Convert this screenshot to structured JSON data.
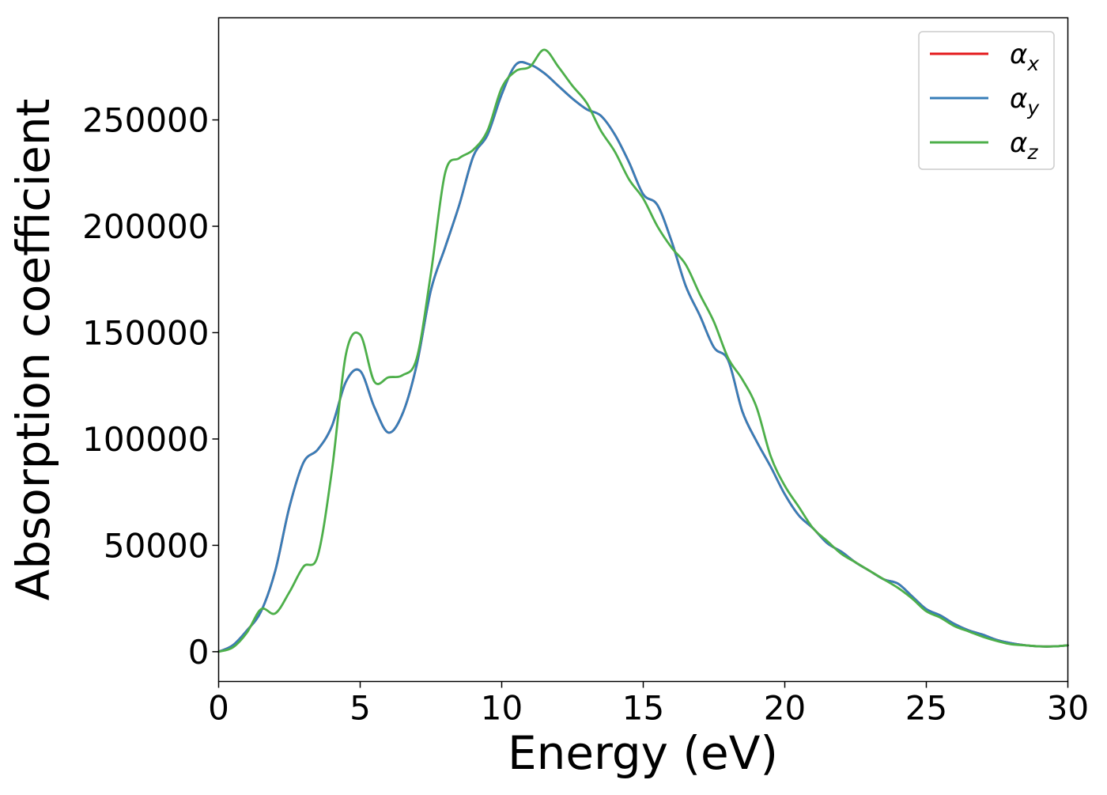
{
  "chart_data": {
    "type": "line",
    "xlabel": "Energy (eV)",
    "ylabel": "Absorption coefficient",
    "xlim": [
      0,
      30
    ],
    "ylim": [
      -14000,
      298000
    ],
    "xticks": [
      0,
      5,
      10,
      15,
      20,
      25,
      30
    ],
    "xtick_labels": [
      "0",
      "5",
      "10",
      "15",
      "20",
      "25",
      "30"
    ],
    "yticks": [
      0,
      50000,
      100000,
      150000,
      200000,
      250000
    ],
    "ytick_labels": [
      "0",
      "50000",
      "100000",
      "150000",
      "200000",
      "250000"
    ],
    "grid": false,
    "legend": {
      "position": "top-right"
    },
    "x": [
      0,
      0.5,
      1,
      1.5,
      2,
      2.5,
      3,
      3.5,
      4,
      4.5,
      5,
      5.5,
      6,
      6.5,
      7,
      7.5,
      8,
      8.5,
      9,
      9.5,
      10,
      10.5,
      11,
      11.5,
      12,
      12.5,
      13,
      13.5,
      14,
      14.5,
      15,
      15.5,
      16,
      16.5,
      17,
      17.5,
      18,
      18.5,
      19,
      19.5,
      20,
      20.5,
      21,
      21.5,
      22,
      22.5,
      23,
      23.5,
      24,
      24.5,
      25,
      25.5,
      26,
      26.5,
      27,
      27.5,
      28,
      28.5,
      29,
      29.5,
      30
    ],
    "series": [
      {
        "name": "α",
        "sub": "x",
        "color": "#e41a1c",
        "values": [
          0,
          3000,
          10000,
          19000,
          38000,
          68000,
          89000,
          95000,
          106000,
          127000,
          132000,
          115000,
          103000,
          112000,
          135000,
          170000,
          190000,
          210000,
          233000,
          243000,
          262000,
          276000,
          276000,
          272000,
          266000,
          260000,
          255000,
          252000,
          243000,
          230000,
          215000,
          210000,
          193000,
          172000,
          158000,
          143000,
          137000,
          113000,
          99000,
          87000,
          74000,
          64000,
          58000,
          51000,
          47000,
          42000,
          38000,
          34000,
          32000,
          26000,
          20000,
          17000,
          13000,
          10000,
          8000,
          5500,
          4000,
          3000,
          2500,
          2500,
          3000
        ]
      },
      {
        "name": "α",
        "sub": "y",
        "color": "#377eb8",
        "values": [
          0,
          3000,
          10000,
          19000,
          38000,
          68000,
          89000,
          95000,
          106000,
          127000,
          132000,
          115000,
          103000,
          112000,
          135000,
          170000,
          190000,
          210000,
          233000,
          243000,
          262000,
          276000,
          276000,
          272000,
          266000,
          260000,
          255000,
          252000,
          243000,
          230000,
          215000,
          210000,
          193000,
          172000,
          158000,
          143000,
          137000,
          113000,
          99000,
          87000,
          74000,
          64000,
          58000,
          51000,
          47000,
          42000,
          38000,
          34000,
          32000,
          26000,
          20000,
          17000,
          13000,
          10000,
          8000,
          5500,
          4000,
          3000,
          2500,
          2500,
          3000
        ]
      },
      {
        "name": "α",
        "sub": "z",
        "color": "#4daf4a",
        "values": [
          0,
          2000,
          9000,
          20000,
          18000,
          28000,
          40000,
          45000,
          85000,
          140000,
          149000,
          127000,
          129000,
          130000,
          138000,
          178000,
          225000,
          232000,
          236000,
          245000,
          265000,
          273000,
          275000,
          283000,
          275000,
          266000,
          258000,
          245000,
          235000,
          222000,
          213000,
          200000,
          190000,
          182000,
          168000,
          155000,
          138000,
          128000,
          115000,
          92000,
          78000,
          68000,
          58000,
          52000,
          46000,
          42000,
          38000,
          34000,
          30000,
          25000,
          19000,
          16000,
          12000,
          9500,
          7000,
          5000,
          3500,
          3000,
          2500,
          2500,
          3000
        ]
      }
    ]
  }
}
